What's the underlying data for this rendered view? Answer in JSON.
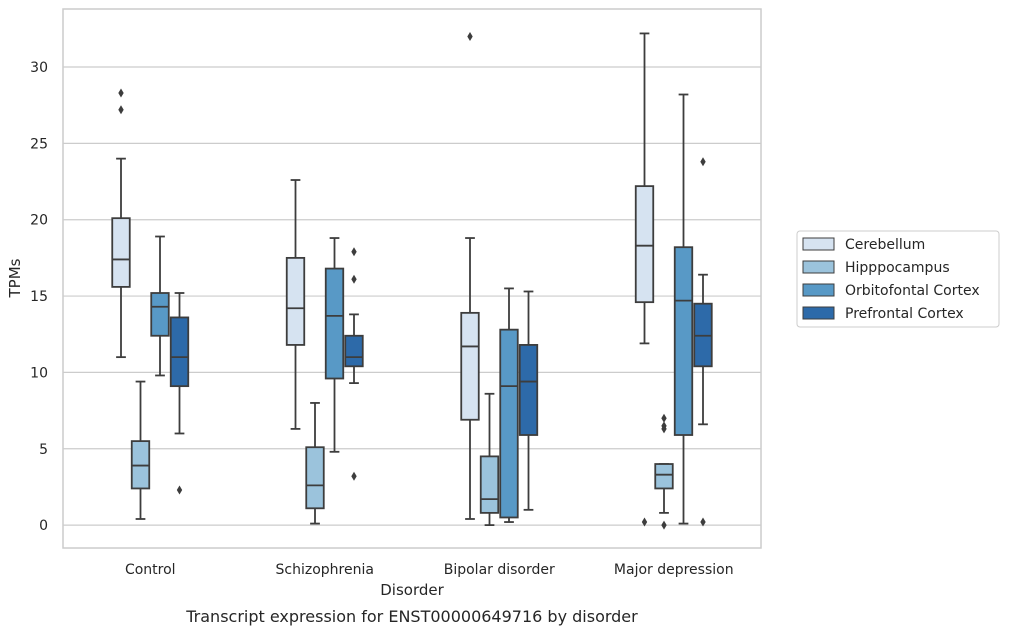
{
  "chart_data": {
    "type": "box",
    "title": "",
    "caption": "Transcript expression for ENST00000649716 by disorder",
    "xlabel": "Disorder",
    "ylabel": "TPMs",
    "ylim": [
      -1.5,
      33.8
    ],
    "yticks": [
      0,
      5,
      10,
      15,
      20,
      25,
      30
    ],
    "grid": "horizontal",
    "legend_position": "right",
    "categories": [
      "Control",
      "Schizophrenia",
      "Bipolar disorder",
      "Major depression"
    ],
    "series": [
      {
        "name": "Cerebellum",
        "color": "#d6e3f1",
        "boxes": [
          {
            "whisker_low": 11.0,
            "q1": 15.6,
            "median": 17.4,
            "q3": 20.1,
            "whisker_high": 24.0,
            "outliers": [
              27.2,
              28.3
            ]
          },
          {
            "whisker_low": 6.3,
            "q1": 11.8,
            "median": 14.2,
            "q3": 17.5,
            "whisker_high": 22.6,
            "outliers": []
          },
          {
            "whisker_low": 0.4,
            "q1": 6.9,
            "median": 11.7,
            "q3": 13.9,
            "whisker_high": 18.8,
            "outliers": [
              32.0
            ]
          },
          {
            "whisker_low": 11.9,
            "q1": 14.6,
            "median": 18.3,
            "q3": 22.2,
            "whisker_high": 32.2,
            "outliers": [
              0.2
            ]
          }
        ]
      },
      {
        "name": "Hipppocampus",
        "color": "#9bc3dc",
        "boxes": [
          {
            "whisker_low": 0.4,
            "q1": 2.4,
            "median": 3.9,
            "q3": 5.5,
            "whisker_high": 9.4,
            "outliers": []
          },
          {
            "whisker_low": 0.1,
            "q1": 1.1,
            "median": 2.6,
            "q3": 5.1,
            "whisker_high": 8.0,
            "outliers": []
          },
          {
            "whisker_low": 0.0,
            "q1": 0.8,
            "median": 1.7,
            "q3": 4.5,
            "whisker_high": 8.6,
            "outliers": []
          },
          {
            "whisker_low": 0.8,
            "q1": 2.4,
            "median": 3.3,
            "q3": 4.0,
            "whisker_high": 4.0,
            "outliers": [
              7.0,
              6.5,
              6.3,
              0.0
            ]
          }
        ]
      },
      {
        "name": "Orbitofontal Cortex",
        "color": "#5899c6",
        "boxes": [
          {
            "whisker_low": 9.8,
            "q1": 12.4,
            "median": 14.3,
            "q3": 15.2,
            "whisker_high": 18.9,
            "outliers": []
          },
          {
            "whisker_low": 4.8,
            "q1": 9.6,
            "median": 13.7,
            "q3": 16.8,
            "whisker_high": 18.8,
            "outliers": []
          },
          {
            "whisker_low": 0.2,
            "q1": 0.5,
            "median": 9.1,
            "q3": 12.8,
            "whisker_high": 15.5,
            "outliers": []
          },
          {
            "whisker_low": 0.1,
            "q1": 5.9,
            "median": 14.7,
            "q3": 18.2,
            "whisker_high": 28.2,
            "outliers": []
          }
        ]
      },
      {
        "name": "Prefrontal Cortex",
        "color": "#2d6aa9",
        "boxes": [
          {
            "whisker_low": 6.0,
            "q1": 9.1,
            "median": 11.0,
            "q3": 13.6,
            "whisker_high": 15.2,
            "outliers": [
              2.3
            ]
          },
          {
            "whisker_low": 9.3,
            "q1": 10.4,
            "median": 11.0,
            "q3": 12.4,
            "whisker_high": 13.8,
            "outliers": [
              17.9,
              16.1,
              3.2
            ]
          },
          {
            "whisker_low": 1.0,
            "q1": 5.9,
            "median": 9.4,
            "q3": 11.8,
            "whisker_high": 15.3,
            "outliers": []
          },
          {
            "whisker_low": 6.6,
            "q1": 10.4,
            "median": 12.4,
            "q3": 14.5,
            "whisker_high": 16.4,
            "outliers": [
              23.8,
              0.2
            ]
          }
        ]
      }
    ]
  }
}
